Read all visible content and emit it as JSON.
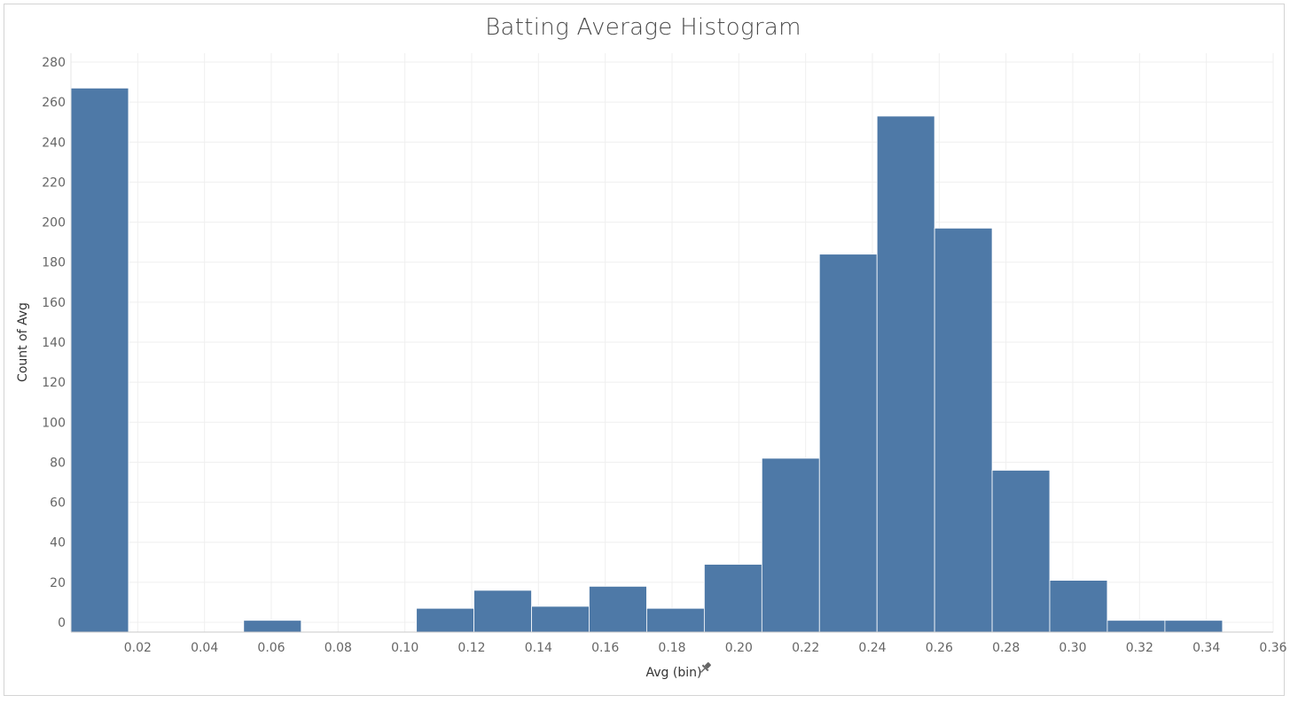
{
  "chart_data": {
    "type": "bar",
    "title": "Batting Average Histogram",
    "xlabel": "Avg (bin)",
    "ylabel": "Count of Avg",
    "bin_width": 0.01724,
    "bins": [
      {
        "start": 0.0,
        "count": 267
      },
      {
        "start": 0.05172,
        "count": 1
      },
      {
        "start": 0.10345,
        "count": 7
      },
      {
        "start": 0.12069,
        "count": 16
      },
      {
        "start": 0.13793,
        "count": 8
      },
      {
        "start": 0.15517,
        "count": 18
      },
      {
        "start": 0.17241,
        "count": 7
      },
      {
        "start": 0.18966,
        "count": 29
      },
      {
        "start": 0.2069,
        "count": 82
      },
      {
        "start": 0.22414,
        "count": 184
      },
      {
        "start": 0.24138,
        "count": 253
      },
      {
        "start": 0.25862,
        "count": 197
      },
      {
        "start": 0.27586,
        "count": 76
      },
      {
        "start": 0.2931,
        "count": 21
      },
      {
        "start": 0.31034,
        "count": 1
      },
      {
        "start": 0.32759,
        "count": 1
      }
    ],
    "x_ticks": [
      "0.02",
      "0.04",
      "0.06",
      "0.08",
      "0.10",
      "0.12",
      "0.14",
      "0.16",
      "0.18",
      "0.20",
      "0.22",
      "0.24",
      "0.26",
      "0.28",
      "0.30",
      "0.32",
      "0.34",
      "0.36"
    ],
    "x_tick_values": [
      0.02,
      0.04,
      0.06,
      0.08,
      0.1,
      0.12,
      0.14,
      0.16,
      0.18,
      0.2,
      0.22,
      0.24,
      0.26,
      0.28,
      0.3,
      0.32,
      0.34,
      0.36
    ],
    "y_ticks": [
      "0",
      "20",
      "40",
      "60",
      "80",
      "100",
      "120",
      "140",
      "160",
      "180",
      "200",
      "220",
      "240",
      "260",
      "280"
    ],
    "y_tick_values": [
      0,
      20,
      40,
      60,
      80,
      100,
      120,
      140,
      160,
      180,
      200,
      220,
      240,
      260,
      280
    ],
    "xlim": [
      0.0,
      0.36
    ],
    "ylim": [
      0,
      280
    ],
    "grid": true,
    "bar_color": "#4e79a7",
    "pinned_icon": "pin-icon"
  }
}
